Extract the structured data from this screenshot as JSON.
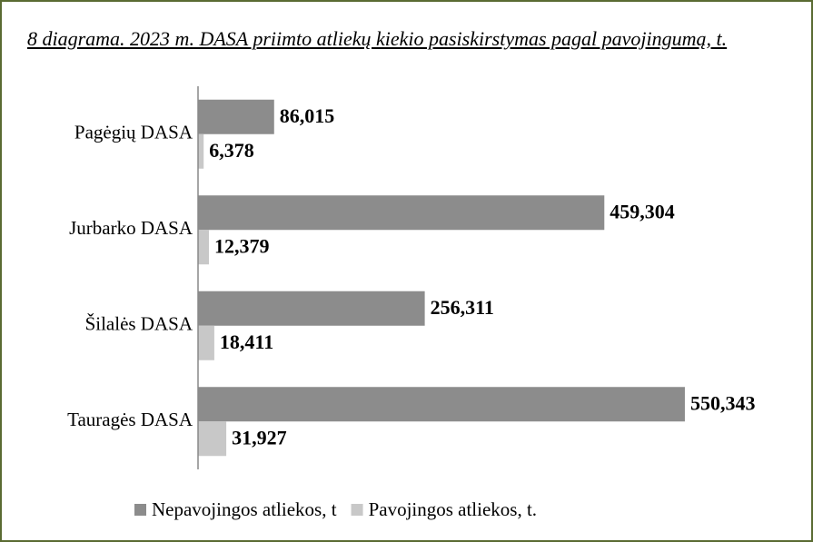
{
  "chart_data": {
    "type": "hbar",
    "title": "8 diagrama. 2023 m. DASA priimto atliekų kiekio pasiskirstymas pagal pavojingumą, t.",
    "categories": [
      "Pagėgių DASA",
      "Jurbarko DASA",
      "Šilalės DASA",
      "Tauragės DASA"
    ],
    "series": [
      {
        "name": "Nepavojingos atliekos, t",
        "color": "#8c8c8c",
        "values": [
          86.015,
          459.304,
          256.311,
          550.343
        ],
        "value_labels": [
          "86,015",
          "459,304",
          "256,311",
          "550,343"
        ]
      },
      {
        "name": "Pavojingos atliekos, t.",
        "color": "#c8c8c8",
        "values": [
          6.378,
          12.379,
          18.411,
          31.927
        ],
        "value_labels": [
          "6,378",
          "12,379",
          "18,411",
          "31,927"
        ]
      }
    ],
    "xlim": [
      0,
      650
    ],
    "grid": false,
    "legend": "bottom"
  }
}
